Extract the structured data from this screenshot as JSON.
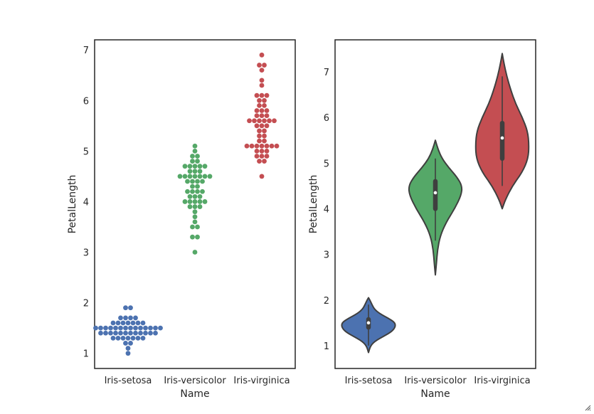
{
  "chart_data": [
    {
      "type": "scatter",
      "subtype": "swarm",
      "xlabel": "Name",
      "ylabel": "PetalLength",
      "categories": [
        "Iris-setosa",
        "Iris-versicolor",
        "Iris-virginica"
      ],
      "ylim": [
        0.7,
        7.2
      ],
      "yticks": [
        1,
        2,
        3,
        4,
        5,
        6,
        7
      ],
      "grid": false,
      "colors": [
        "#4c72b0",
        "#55a868",
        "#c44e52"
      ],
      "series": [
        {
          "category": "Iris-setosa",
          "values": [
            1.0,
            1.1,
            1.2,
            1.2,
            1.3,
            1.3,
            1.3,
            1.3,
            1.3,
            1.3,
            1.3,
            1.4,
            1.4,
            1.4,
            1.4,
            1.4,
            1.4,
            1.4,
            1.4,
            1.4,
            1.4,
            1.4,
            1.4,
            1.5,
            1.5,
            1.5,
            1.5,
            1.5,
            1.5,
            1.5,
            1.5,
            1.5,
            1.5,
            1.5,
            1.5,
            1.5,
            1.5,
            1.6,
            1.6,
            1.6,
            1.6,
            1.6,
            1.6,
            1.6,
            1.7,
            1.7,
            1.7,
            1.7,
            1.9,
            1.9
          ]
        },
        {
          "category": "Iris-versicolor",
          "values": [
            3.0,
            3.3,
            3.3,
            3.5,
            3.5,
            3.6,
            3.7,
            3.8,
            3.9,
            3.9,
            3.9,
            4.0,
            4.0,
            4.0,
            4.0,
            4.0,
            4.1,
            4.1,
            4.1,
            4.2,
            4.2,
            4.2,
            4.2,
            4.3,
            4.3,
            4.4,
            4.4,
            4.4,
            4.4,
            4.5,
            4.5,
            4.5,
            4.5,
            4.5,
            4.5,
            4.5,
            4.6,
            4.6,
            4.6,
            4.7,
            4.7,
            4.7,
            4.7,
            4.7,
            4.8,
            4.8,
            4.9,
            4.9,
            5.0,
            5.1
          ]
        },
        {
          "category": "Iris-virginica",
          "values": [
            4.5,
            4.8,
            4.8,
            4.9,
            4.9,
            4.9,
            5.0,
            5.0,
            5.0,
            5.1,
            5.1,
            5.1,
            5.1,
            5.1,
            5.1,
            5.1,
            5.2,
            5.2,
            5.3,
            5.3,
            5.4,
            5.4,
            5.5,
            5.5,
            5.5,
            5.6,
            5.6,
            5.6,
            5.6,
            5.6,
            5.6,
            5.7,
            5.7,
            5.7,
            5.8,
            5.8,
            5.8,
            5.9,
            5.9,
            6.0,
            6.0,
            6.1,
            6.1,
            6.1,
            6.3,
            6.4,
            6.6,
            6.7,
            6.7,
            6.9
          ]
        }
      ]
    },
    {
      "type": "violin",
      "xlabel": "Name",
      "ylabel": "PetalLength",
      "categories": [
        "Iris-setosa",
        "Iris-versicolor",
        "Iris-virginica"
      ],
      "ylim": [
        0.5,
        7.7
      ],
      "yticks": [
        1,
        2,
        3,
        4,
        5,
        6,
        7
      ],
      "grid": false,
      "colors": [
        "#4c72b0",
        "#55a868",
        "#c44e52"
      ],
      "violins": [
        {
          "category": "Iris-setosa",
          "range": [
            0.85,
            2.05
          ],
          "q1": 1.4,
          "median": 1.5,
          "q3": 1.575,
          "whisker_low": 1.0,
          "whisker_high": 1.9,
          "density": [
            [
              0.85,
              0.0
            ],
            [
              1.0,
              0.08
            ],
            [
              1.1,
              0.25
            ],
            [
              1.2,
              0.55
            ],
            [
              1.3,
              0.85
            ],
            [
              1.4,
              1.0
            ],
            [
              1.5,
              1.0
            ],
            [
              1.6,
              0.75
            ],
            [
              1.7,
              0.42
            ],
            [
              1.8,
              0.22
            ],
            [
              1.9,
              0.13
            ],
            [
              2.0,
              0.05
            ],
            [
              2.05,
              0.0
            ]
          ]
        },
        {
          "category": "Iris-versicolor",
          "range": [
            2.55,
            5.5
          ],
          "q1": 4.0,
          "median": 4.35,
          "q3": 4.6,
          "whisker_low": 3.3,
          "whisker_high": 5.1,
          "density": [
            [
              2.55,
              0.0
            ],
            [
              2.8,
              0.04
            ],
            [
              3.1,
              0.08
            ],
            [
              3.4,
              0.18
            ],
            [
              3.7,
              0.4
            ],
            [
              4.0,
              0.72
            ],
            [
              4.3,
              0.97
            ],
            [
              4.5,
              1.0
            ],
            [
              4.7,
              0.8
            ],
            [
              4.9,
              0.5
            ],
            [
              5.1,
              0.25
            ],
            [
              5.3,
              0.1
            ],
            [
              5.5,
              0.0
            ]
          ]
        },
        {
          "category": "Iris-virginica",
          "range": [
            4.0,
            7.4
          ],
          "q1": 5.1,
          "median": 5.55,
          "q3": 5.875,
          "whisker_low": 4.5,
          "whisker_high": 6.9,
          "density": [
            [
              4.0,
              0.0
            ],
            [
              4.2,
              0.12
            ],
            [
              4.5,
              0.38
            ],
            [
              4.8,
              0.75
            ],
            [
              5.1,
              0.97
            ],
            [
              5.4,
              1.0
            ],
            [
              5.7,
              0.95
            ],
            [
              6.0,
              0.75
            ],
            [
              6.3,
              0.5
            ],
            [
              6.6,
              0.32
            ],
            [
              6.9,
              0.17
            ],
            [
              7.2,
              0.06
            ],
            [
              7.4,
              0.0
            ]
          ]
        }
      ]
    }
  ]
}
